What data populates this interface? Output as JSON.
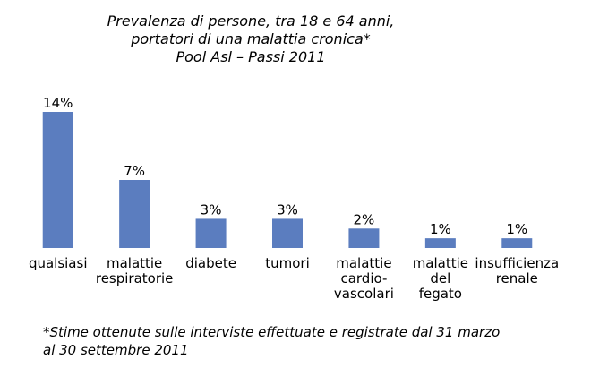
{
  "chart_data": {
    "type": "bar",
    "title": [
      "Prevalenza di persone, tra 18 e 64 anni,",
      "portatori di una malattia cronica*",
      "Pool Asl – Passi 2011"
    ],
    "categories": [
      [
        "qualsiasi"
      ],
      [
        "malattie",
        "respiratorie"
      ],
      [
        "diabete"
      ],
      [
        "tumori"
      ],
      [
        "malattie",
        "cardio-",
        "vascolari"
      ],
      [
        "malattie",
        "del",
        "fegato"
      ],
      [
        "insufficienza",
        "renale"
      ]
    ],
    "values": [
      14,
      7,
      3,
      3,
      2,
      1,
      1
    ],
    "value_labels": [
      "14%",
      "7%",
      "3%",
      "3%",
      "2%",
      "1%",
      "1%"
    ],
    "ylim": [
      0,
      14
    ],
    "grid": false,
    "legend": "none",
    "bar_color": "#5b7dbf"
  },
  "footnote": [
    "*Stime ottenute sulle interviste effettuate e registrate dal 31 marzo",
    "al 30 settembre 2011"
  ]
}
